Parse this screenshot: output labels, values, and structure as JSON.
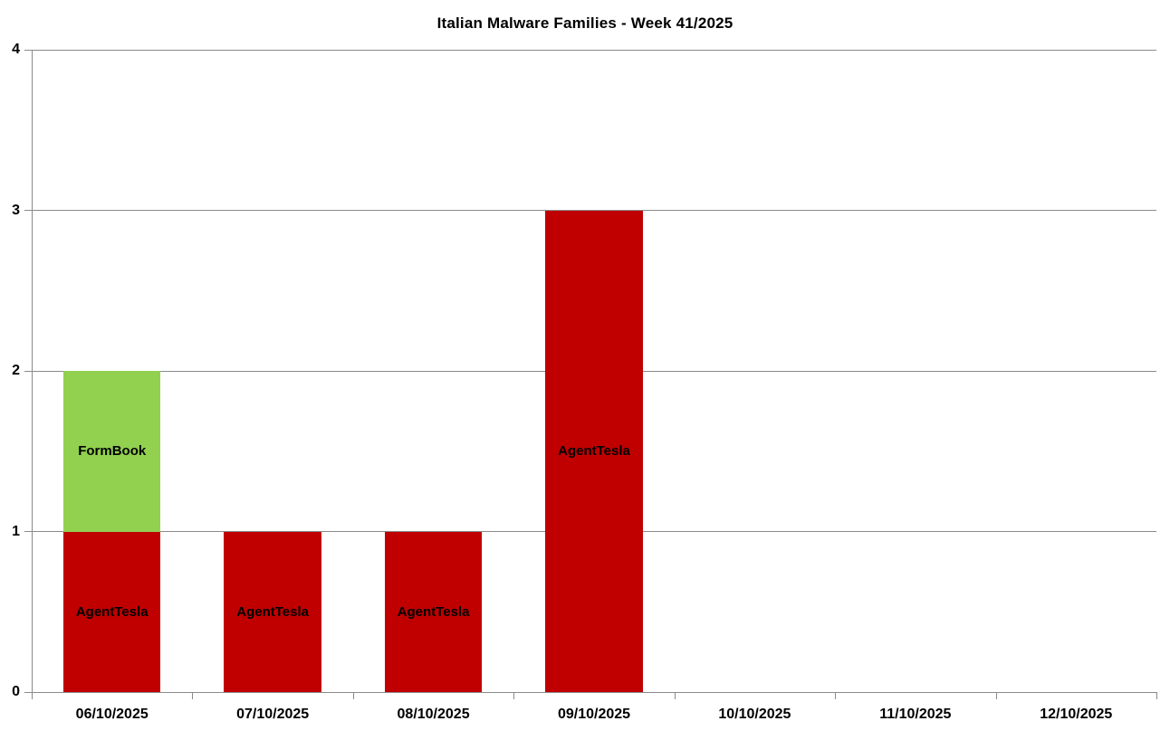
{
  "page": {
    "background_color": "#FFFFFF"
  },
  "chart_data": {
    "type": "bar",
    "stacked": true,
    "title": "Italian Malware Families - Week 41/2025",
    "categories": [
      "06/10/2025",
      "07/10/2025",
      "08/10/2025",
      "09/10/2025",
      "10/10/2025",
      "11/10/2025",
      "12/10/2025"
    ],
    "series": [
      {
        "name": "AgentTesla",
        "color": "#C00000",
        "values": [
          1,
          1,
          1,
          3,
          0,
          0,
          0
        ]
      },
      {
        "name": "FormBook",
        "color": "#92D050",
        "values": [
          1,
          0,
          0,
          0,
          0,
          0,
          0
        ]
      }
    ],
    "segment_labels": "series name centered inside each bar segment",
    "xlabel": "",
    "ylabel": "",
    "ylim": [
      0,
      4
    ],
    "yticks": [
      0,
      1,
      2,
      3,
      4
    ],
    "grid": true,
    "legend": "none",
    "axis_color": "#8A8A8A",
    "text_color": "#000000",
    "gap_width_fraction": 0.65
  }
}
